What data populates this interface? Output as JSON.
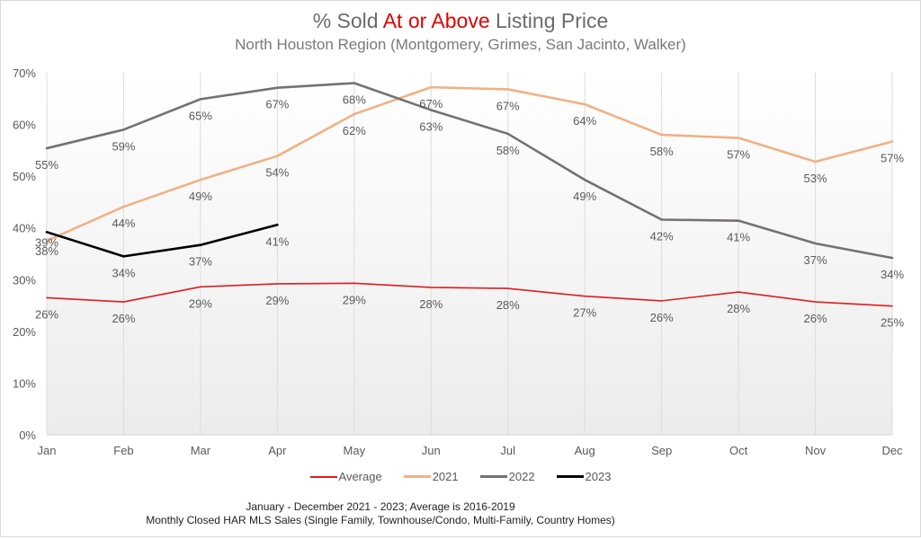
{
  "header": {
    "title_prefix": "% Sold ",
    "title_highlight": "At or Above",
    "title_suffix": " Listing Price",
    "subtitle": "North Houston Region (Montgomery, Grimes, San Jacinto, Walker)"
  },
  "footer": {
    "line1": "January - December 2021 - 2023; Average is 2016-2019",
    "line2": "Monthly Closed HAR MLS Sales (Single Family, Townhouse/Condo, Multi-Family, Country Homes)"
  },
  "chart_data": {
    "type": "line",
    "title": "% Sold At or Above Listing Price",
    "subtitle": "North Houston Region (Montgomery, Grimes, San Jacinto, Walker)",
    "xlabel": "",
    "ylabel": "",
    "categories": [
      "Jan",
      "Feb",
      "Mar",
      "Apr",
      "May",
      "Jun",
      "Jul",
      "Aug",
      "Sep",
      "Oct",
      "Nov",
      "Dec"
    ],
    "ylim": [
      0,
      70
    ],
    "yticks": [
      0,
      10,
      20,
      30,
      40,
      50,
      60,
      70
    ],
    "ytick_labels": [
      "0%",
      "10%",
      "20%",
      "30%",
      "40%",
      "50%",
      "60%",
      "70%"
    ],
    "grid": "vertical",
    "legend_position": "bottom",
    "series": [
      {
        "name": "Average",
        "color": "#e31a1c",
        "values": [
          26.5,
          25.7,
          28.6,
          29.2,
          29.3,
          28.5,
          28.3,
          26.8,
          25.9,
          27.6,
          25.7,
          24.9
        ],
        "labels": [
          "26%",
          "26%",
          "29%",
          "29%",
          "29%",
          "28%",
          "28%",
          "27%",
          "26%",
          "28%",
          "26%",
          "25%"
        ]
      },
      {
        "name": "2021",
        "color": "#f0b185",
        "values": [
          37.5,
          44.1,
          49.3,
          53.9,
          62.0,
          67.2,
          66.8,
          63.9,
          58.0,
          57.4,
          52.8,
          56.7
        ],
        "labels": [
          "38%",
          "44%",
          "49%",
          "54%",
          "62%",
          "67%",
          "67%",
          "64%",
          "58%",
          "57%",
          "53%",
          "57%"
        ]
      },
      {
        "name": "2022",
        "color": "#767171",
        "values": [
          55.4,
          59.0,
          64.9,
          67.1,
          68.0,
          62.8,
          58.2,
          49.3,
          41.6,
          41.4,
          37.0,
          34.2
        ],
        "labels": [
          "55%",
          "59%",
          "65%",
          "67%",
          "68%",
          "63%",
          "58%",
          "49%",
          "42%",
          "41%",
          "37%",
          "34%"
        ]
      },
      {
        "name": "2023",
        "color": "#000000",
        "values": [
          39.2,
          34.5,
          36.7,
          40.6
        ],
        "labels": [
          "39%",
          "34%",
          "37%",
          "41%"
        ]
      }
    ]
  }
}
